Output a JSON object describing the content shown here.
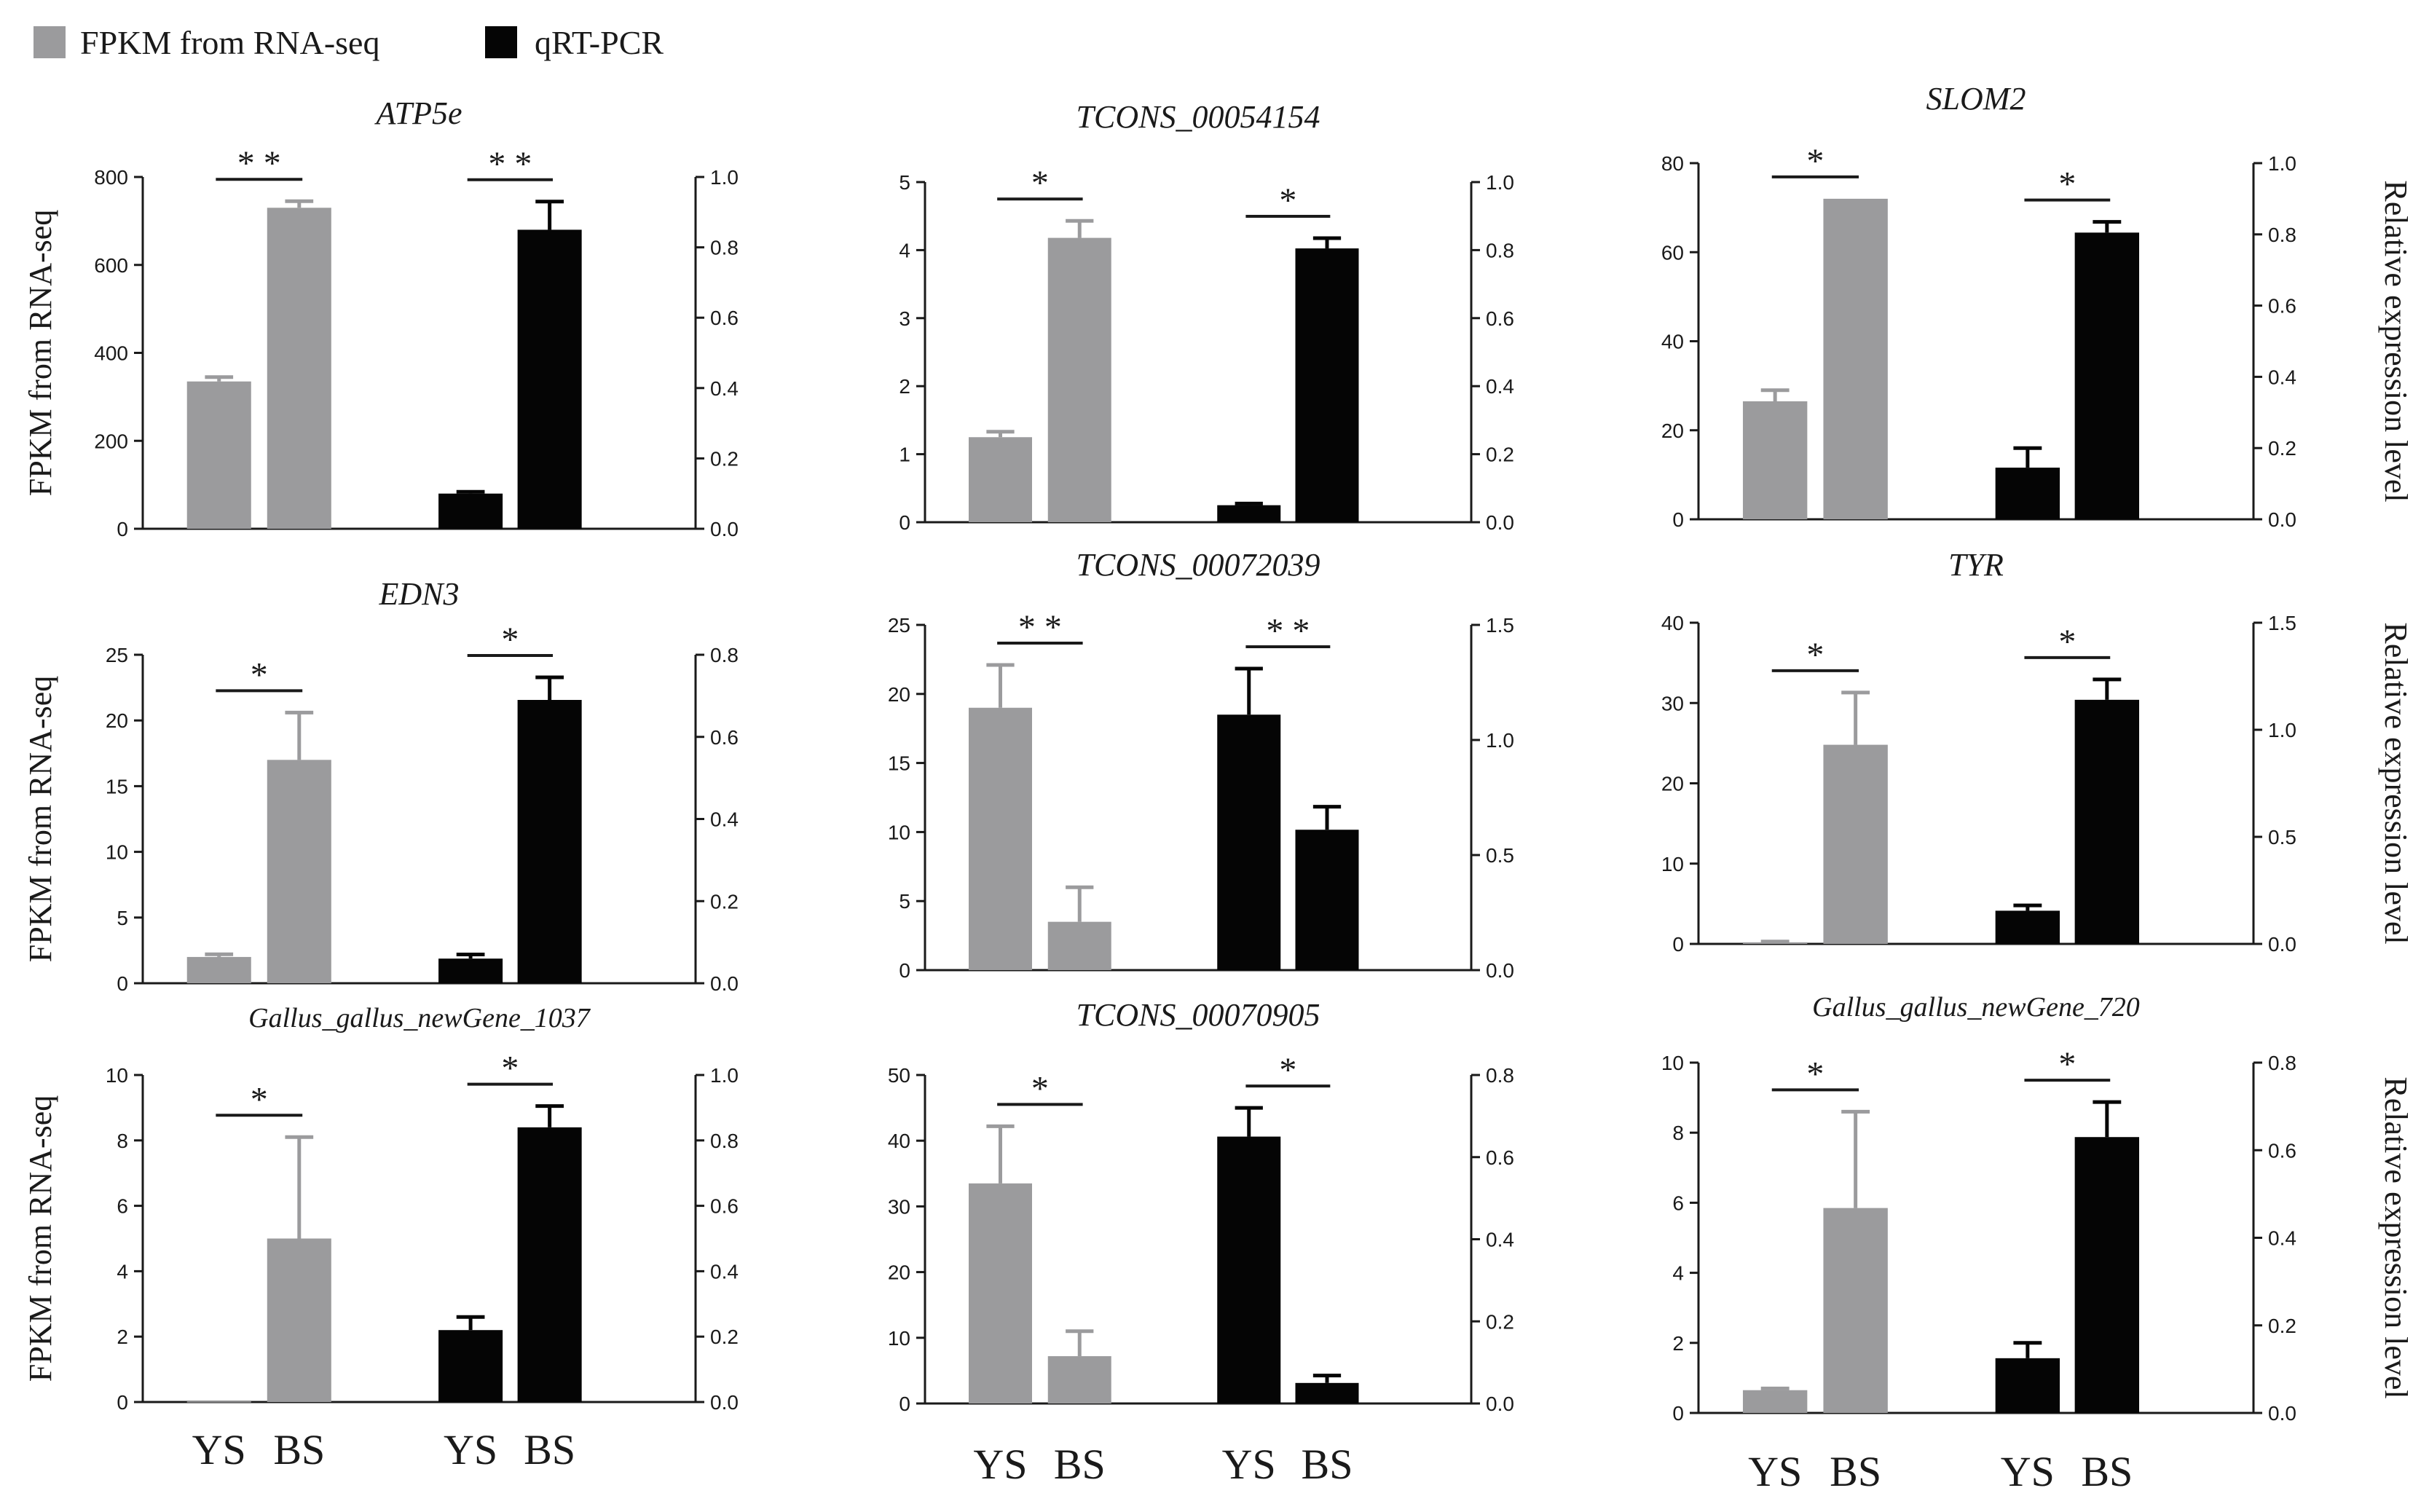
{
  "legend": {
    "rna_label": "FPKM from RNA-seq",
    "qpcr_label": "qRT-PCR"
  },
  "colors": {
    "rna": "#9b9b9d",
    "qpcr": "#050505",
    "axis": "#1a1a1a"
  },
  "axis_titles": {
    "left": "FPKM from RNA-seq",
    "right": "Relative expression level"
  },
  "group_labels": [
    "YS",
    "BS"
  ],
  "chart_data": [
    {
      "type": "bar",
      "title": "ATP5e",
      "left_axis": {
        "label": "FPKM from RNA-seq",
        "ylim": [
          0,
          800
        ],
        "ticks": [
          0,
          200,
          400,
          600,
          800
        ]
      },
      "right_axis": {
        "label": "",
        "ylim": [
          0,
          1.0
        ],
        "ticks": [
          "0.0",
          "0.2",
          "0.4",
          "0.6",
          "0.8",
          "1.0"
        ]
      },
      "categories": [
        "YS",
        "BS"
      ],
      "series": [
        {
          "name": "FPKM from RNA-seq",
          "axis": "left",
          "values": [
            335,
            730
          ],
          "errors": [
            10,
            15
          ]
        },
        {
          "name": "qRT-PCR",
          "axis": "right",
          "values": [
            0.1,
            0.85
          ],
          "errors": [
            0.005,
            0.08
          ]
        }
      ],
      "significance": [
        "* *",
        "* *"
      ]
    },
    {
      "type": "bar",
      "title": "TCONS_00054154",
      "left_axis": {
        "label": "",
        "ylim": [
          0,
          5
        ],
        "ticks": [
          0,
          1,
          2,
          3,
          4,
          5
        ]
      },
      "right_axis": {
        "label": "",
        "ylim": [
          0,
          1.0
        ],
        "ticks": [
          "0.0",
          "0.2",
          "0.4",
          "0.6",
          "0.8",
          "1.0"
        ]
      },
      "categories": [
        "YS",
        "BS"
      ],
      "series": [
        {
          "name": "FPKM from RNA-seq",
          "axis": "left",
          "values": [
            1.25,
            4.18
          ],
          "errors": [
            0.08,
            0.25
          ]
        },
        {
          "name": "qRT-PCR",
          "axis": "right",
          "values": [
            0.05,
            0.805
          ],
          "errors": [
            0.005,
            0.03
          ]
        }
      ],
      "significance": [
        "*",
        "*"
      ]
    },
    {
      "type": "bar",
      "title": "SLOM2",
      "left_axis": {
        "label": "",
        "ylim": [
          0,
          80
        ],
        "ticks": [
          0,
          20,
          40,
          60,
          80
        ]
      },
      "right_axis": {
        "label": "Relative expression level",
        "ylim": [
          0,
          1.0
        ],
        "ticks": [
          "0.0",
          "0.2",
          "0.4",
          "0.6",
          "0.8",
          "1.0"
        ]
      },
      "categories": [
        "YS",
        "BS"
      ],
      "series": [
        {
          "name": "FPKM from RNA-seq",
          "axis": "left",
          "values": [
            26.5,
            72
          ],
          "errors": [
            2.5,
            0
          ]
        },
        {
          "name": "qRT-PCR",
          "axis": "right",
          "values": [
            0.145,
            0.805
          ],
          "errors": [
            0.055,
            0.03
          ]
        }
      ],
      "significance": [
        "*",
        "*"
      ]
    },
    {
      "type": "bar",
      "title": "EDN3",
      "left_axis": {
        "label": "FPKM from RNA-seq",
        "ylim": [
          0,
          25
        ],
        "ticks": [
          0,
          5,
          10,
          15,
          20,
          25
        ]
      },
      "right_axis": {
        "label": "",
        "ylim": [
          0,
          0.8
        ],
        "ticks": [
          "0.0",
          "0.2",
          "0.4",
          "0.6",
          "0.8"
        ]
      },
      "categories": [
        "YS",
        "BS"
      ],
      "series": [
        {
          "name": "FPKM from RNA-seq",
          "axis": "left",
          "values": [
            2.0,
            17.0
          ],
          "errors": [
            0.2,
            3.6
          ]
        },
        {
          "name": "qRT-PCR",
          "axis": "right",
          "values": [
            0.06,
            0.69
          ],
          "errors": [
            0.01,
            0.055
          ]
        }
      ],
      "significance": [
        "*",
        "*"
      ]
    },
    {
      "type": "bar",
      "title": "TCONS_00072039",
      "left_axis": {
        "label": "",
        "ylim": [
          0,
          25
        ],
        "ticks": [
          0,
          5,
          10,
          15,
          20,
          25
        ]
      },
      "right_axis": {
        "label": "",
        "ylim": [
          0,
          1.5
        ],
        "ticks": [
          "0.0",
          "0.5",
          "1.0",
          "1.5"
        ]
      },
      "categories": [
        "YS",
        "BS"
      ],
      "series": [
        {
          "name": "FPKM from RNA-seq",
          "axis": "left",
          "values": [
            19.0,
            3.5
          ],
          "errors": [
            3.1,
            2.5
          ]
        },
        {
          "name": "qRT-PCR",
          "axis": "right",
          "values": [
            1.11,
            0.61
          ],
          "errors": [
            0.2,
            0.1
          ]
        }
      ],
      "significance": [
        "* *",
        "* *"
      ]
    },
    {
      "type": "bar",
      "title": "TYR",
      "left_axis": {
        "label": "",
        "ylim": [
          0,
          40
        ],
        "ticks": [
          0,
          10,
          20,
          30,
          40
        ]
      },
      "right_axis": {
        "label": "Relative expression level",
        "ylim": [
          0,
          1.5
        ],
        "ticks": [
          "0.0",
          "0.5",
          "1.0",
          "1.5"
        ]
      },
      "categories": [
        "YS",
        "BS"
      ],
      "series": [
        {
          "name": "FPKM from RNA-seq",
          "axis": "left",
          "values": [
            0.2,
            24.8
          ],
          "errors": [
            0.1,
            6.5
          ]
        },
        {
          "name": "qRT-PCR",
          "axis": "right",
          "values": [
            0.155,
            1.14
          ],
          "errors": [
            0.025,
            0.095
          ]
        }
      ],
      "significance": [
        "*",
        "*"
      ]
    },
    {
      "type": "bar",
      "title": "Gallus_gallus_newGene_1037",
      "left_axis": {
        "label": "FPKM from RNA-seq",
        "ylim": [
          0,
          10
        ],
        "ticks": [
          0,
          2,
          4,
          6,
          8,
          10
        ]
      },
      "right_axis": {
        "label": "",
        "ylim": [
          0,
          1.0
        ],
        "ticks": [
          "0.0",
          "0.2",
          "0.4",
          "0.6",
          "0.8",
          "1.0"
        ]
      },
      "categories": [
        "YS",
        "BS"
      ],
      "series": [
        {
          "name": "FPKM from RNA-seq",
          "axis": "left",
          "values": [
            0.02,
            5.0
          ],
          "errors": [
            0,
            3.1
          ]
        },
        {
          "name": "qRT-PCR",
          "axis": "right",
          "values": [
            0.22,
            0.84
          ],
          "errors": [
            0.04,
            0.065
          ]
        }
      ],
      "significance": [
        "*",
        "*"
      ]
    },
    {
      "type": "bar",
      "title": "TCONS_00070905",
      "left_axis": {
        "label": "",
        "ylim": [
          0,
          50
        ],
        "ticks": [
          0,
          10,
          20,
          30,
          40,
          50
        ]
      },
      "right_axis": {
        "label": "",
        "ylim": [
          0,
          0.8
        ],
        "ticks": [
          "0.0",
          "0.2",
          "0.4",
          "0.6",
          "0.8"
        ]
      },
      "categories": [
        "YS",
        "BS"
      ],
      "series": [
        {
          "name": "FPKM from RNA-seq",
          "axis": "left",
          "values": [
            33.5,
            7.2
          ],
          "errors": [
            8.7,
            3.8
          ]
        },
        {
          "name": "qRT-PCR",
          "axis": "right",
          "values": [
            0.65,
            0.05
          ],
          "errors": [
            0.07,
            0.018
          ]
        }
      ],
      "significance": [
        "*",
        "*"
      ]
    },
    {
      "type": "bar",
      "title": "Gallus_gallus_newGene_720",
      "left_axis": {
        "label": "",
        "ylim": [
          0,
          10
        ],
        "ticks": [
          0,
          2,
          4,
          6,
          8,
          10
        ]
      },
      "right_axis": {
        "label": "Relative expression level",
        "ylim": [
          0,
          0.8
        ],
        "ticks": [
          "0.0",
          "0.2",
          "0.4",
          "0.6",
          "0.8"
        ]
      },
      "categories": [
        "YS",
        "BS"
      ],
      "series": [
        {
          "name": "FPKM from RNA-seq",
          "axis": "left",
          "values": [
            0.65,
            5.85
          ],
          "errors": [
            0.05,
            2.75
          ]
        },
        {
          "name": "qRT-PCR",
          "axis": "right",
          "values": [
            0.125,
            0.63
          ],
          "errors": [
            0.035,
            0.08
          ]
        }
      ],
      "significance": [
        "*",
        "*"
      ]
    }
  ]
}
